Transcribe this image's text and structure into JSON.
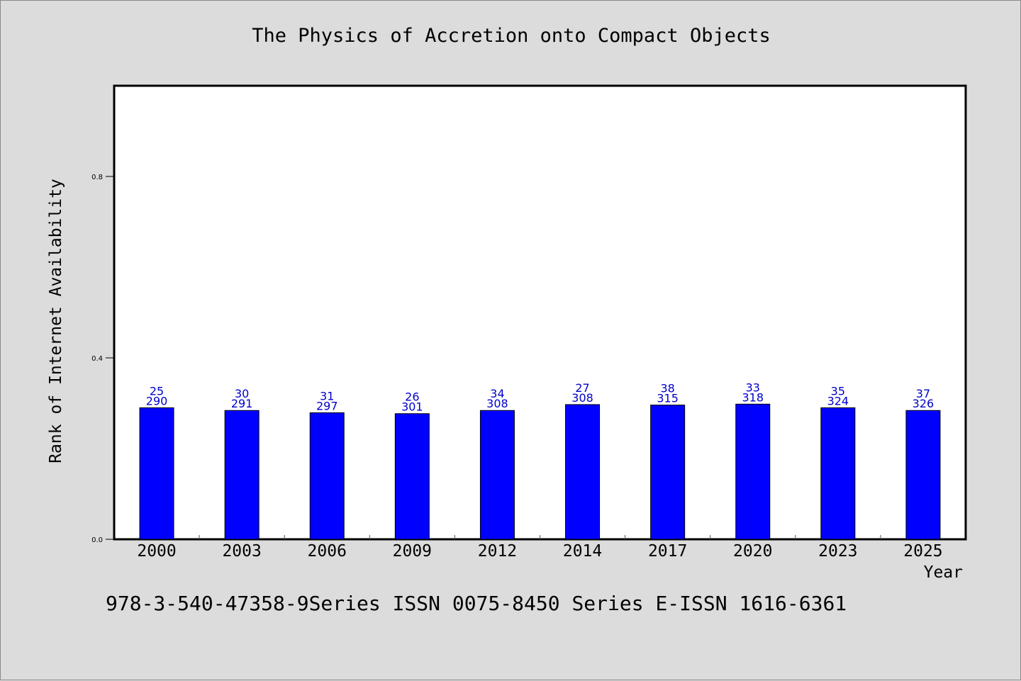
{
  "chart_data": {
    "type": "bar",
    "title": "The Physics of Accretion onto Compact Objects",
    "xlabel": "Year",
    "ylabel": "Rank of Internet Availability",
    "categories": [
      "2000",
      "2003",
      "2006",
      "2009",
      "2012",
      "2014",
      "2017",
      "2020",
      "2023",
      "2025"
    ],
    "values": [
      0.29,
      0.284,
      0.279,
      0.277,
      0.284,
      0.297,
      0.296,
      0.298,
      0.29,
      0.284
    ],
    "label_top": [
      "25",
      "30",
      "31",
      "26",
      "34",
      "27",
      "38",
      "33",
      "35",
      "37"
    ],
    "label_bottom": [
      "290",
      "291",
      "297",
      "301",
      "308",
      "308",
      "315",
      "318",
      "324",
      "326"
    ],
    "ylim": [
      0,
      1.0
    ],
    "yticks": [
      "0.0",
      "0.4",
      "0.8"
    ],
    "grid": false,
    "colors": {
      "bar": "#0000ff",
      "data_label": "#0000cc",
      "plot_bg": "#ffffff",
      "page_bg": "#dcdcdc"
    }
  },
  "footnote": "978-3-540-47358-9Series ISSN 0075-8450 Series E-ISSN 1616-6361"
}
